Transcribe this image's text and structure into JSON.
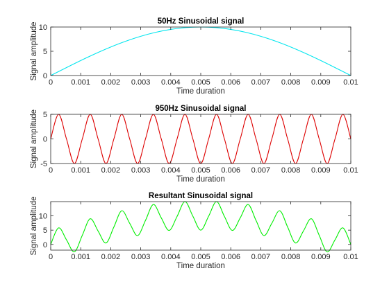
{
  "chart_data": [
    {
      "type": "line",
      "title": "50Hz Sinusoidal signal",
      "xlabel": "Time duration",
      "ylabel": "Signal amplitude",
      "xlim": [
        0,
        0.01
      ],
      "ylim": [
        0,
        10
      ],
      "xticks": [
        "0",
        "0.001",
        "0.002",
        "0.003",
        "0.004",
        "0.005",
        "0.006",
        "0.007",
        "0.008",
        "0.009",
        "0.01"
      ],
      "yticks": [
        "0",
        "5",
        "10"
      ],
      "grid": false,
      "color": "#00e5ee",
      "series": [
        {
          "x": [
            0,
            0.0005,
            0.001,
            0.0015,
            0.002,
            0.0025,
            0.003,
            0.0035,
            0.004,
            0.0045,
            0.005,
            0.0055,
            0.006,
            0.0065,
            0.007,
            0.0075,
            0.008,
            0.0085,
            0.009,
            0.0095,
            0.01
          ],
          "y": [
            0,
            1.56,
            3.09,
            4.54,
            5.88,
            7.07,
            8.09,
            8.91,
            9.51,
            9.88,
            10,
            9.88,
            9.51,
            8.91,
            8.09,
            7.07,
            5.88,
            4.54,
            3.09,
            1.56,
            0
          ]
        }
      ]
    },
    {
      "type": "line",
      "title": "950Hz Sinusoidal signal",
      "xlabel": "Time duration",
      "ylabel": "Signal amplitude",
      "xlim": [
        0,
        0.01
      ],
      "ylim": [
        -5,
        5
      ],
      "xticks": [
        "0",
        "0.001",
        "0.002",
        "0.003",
        "0.004",
        "0.005",
        "0.006",
        "0.007",
        "0.008",
        "0.009",
        "0.01"
      ],
      "yticks": [
        "-5",
        "0",
        "5"
      ],
      "grid": false,
      "color": "#dd0000",
      "series": [
        {
          "x": [
            0,
            0.000263,
            0.000526,
            0.000789,
            0.001053,
            0.001316,
            0.001579,
            0.001842,
            0.002105,
            0.002368,
            0.002632,
            0.002895,
            0.003158,
            0.003421,
            0.003684,
            0.003947,
            0.004211,
            0.004474,
            0.004737,
            0.005,
            0.005263,
            0.005526,
            0.005789,
            0.006053,
            0.006316,
            0.006579,
            0.006842,
            0.007105,
            0.007368,
            0.007632,
            0.007895,
            0.008158,
            0.008421,
            0.008684,
            0.008947,
            0.009211,
            0.009474,
            0.009737,
            0.01
          ],
          "y": [
            0,
            5,
            0,
            -5,
            0,
            5,
            0,
            -5,
            0,
            5,
            0,
            -5,
            0,
            5,
            0,
            -5,
            0,
            5,
            0,
            -5,
            0,
            5,
            0,
            -5,
            0,
            5,
            0,
            -5,
            0,
            5,
            0,
            -5,
            0,
            5,
            0,
            -5,
            0,
            5,
            0
          ]
        }
      ]
    },
    {
      "type": "line",
      "title": "Resultant Sinusoidal signal",
      "xlabel": "Time duration",
      "ylabel": "Signal amplitude",
      "xlim": [
        0,
        0.01
      ],
      "ylim": [
        -2,
        15
      ],
      "xticks": [
        "0",
        "0.001",
        "0.002",
        "0.003",
        "0.004",
        "0.005",
        "0.006",
        "0.007",
        "0.008",
        "0.009",
        "0.01"
      ],
      "yticks": [
        "0",
        "5",
        "10"
      ],
      "grid": false,
      "color": "#00ee00",
      "series": [
        {
          "x": [
            0,
            0.000263,
            0.000526,
            0.000789,
            0.001053,
            0.001316,
            0.001579,
            0.001842,
            0.002105,
            0.002368,
            0.002632,
            0.002895,
            0.003158,
            0.003421,
            0.003684,
            0.003947,
            0.004211,
            0.004474,
            0.004737,
            0.005,
            0.005263,
            0.005526,
            0.005789,
            0.006053,
            0.006316,
            0.006579,
            0.006842,
            0.007105,
            0.007368,
            0.007632,
            0.007895,
            0.008158,
            0.008421,
            0.008684,
            0.008947,
            0.009211,
            0.009474,
            0.009737,
            0.01
          ],
          "y": [
            0,
            5.8,
            1.6,
            -2.6,
            3.2,
            9.0,
            4.7,
            0.5,
            6.1,
            11.8,
            7.4,
            3.1,
            8.4,
            14.0,
            9.3,
            4.9,
            9.8,
            15.0,
            9.9,
            5.0,
            9.9,
            15.0,
            9.8,
            4.9,
            9.3,
            14.0,
            8.4,
            3.1,
            7.4,
            11.8,
            6.1,
            0.5,
            4.7,
            9.0,
            3.2,
            -2.6,
            1.6,
            5.8,
            0
          ]
        }
      ]
    }
  ]
}
